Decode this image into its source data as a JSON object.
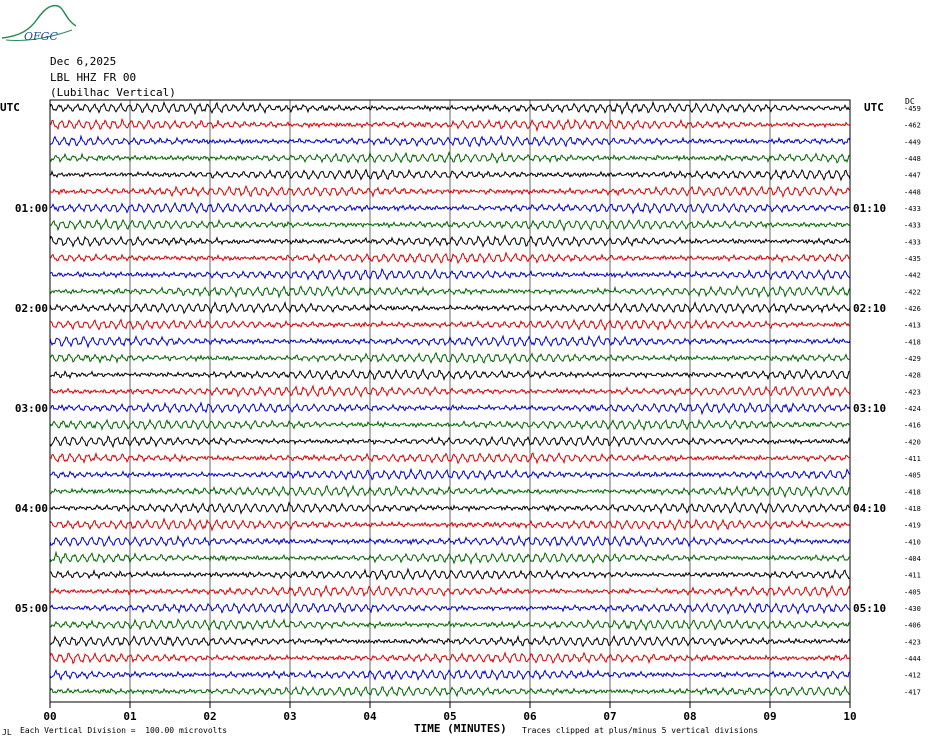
{
  "header": {
    "logo_text": "OFGC",
    "date": "Dec 6,2025",
    "station": "LBL HHZ FR 00",
    "location": "(Lubilhac Vertical)"
  },
  "left_axis_label": "UTC",
  "right_axis_label": "UTC",
  "dc_label": "DC",
  "footer": {
    "left_mark": "JL",
    "scale_note": "Each Vertical Division =  100.00 microvolts",
    "clip_note": "Traces clipped at plus/minus 5 vertical divisions"
  },
  "colors": [
    "#000000",
    "#dd0000",
    "#0000cc",
    "#006600"
  ],
  "chart_data": {
    "type": "line",
    "xlabel": "TIME (MINUTES)",
    "x_ticks": [
      "00",
      "01",
      "02",
      "03",
      "04",
      "05",
      "06",
      "07",
      "08",
      "09",
      "10"
    ],
    "xlim": [
      0,
      10
    ],
    "left_time_labels": [
      {
        "row": 6,
        "label": "01:00"
      },
      {
        "row": 12,
        "label": "02:00"
      },
      {
        "row": 18,
        "label": "03:00"
      },
      {
        "row": 24,
        "label": "04:00"
      },
      {
        "row": 30,
        "label": "05:00"
      }
    ],
    "right_time_labels": [
      {
        "row": 6,
        "label": "01:10"
      },
      {
        "row": 12,
        "label": "02:10"
      },
      {
        "row": 18,
        "label": "03:10"
      },
      {
        "row": 24,
        "label": "04:10"
      },
      {
        "row": 30,
        "label": "05:10"
      }
    ],
    "dc_offsets": [
      -459,
      -462,
      -449,
      -448,
      -447,
      -448,
      -433,
      -433,
      -433,
      -435,
      -442,
      -422,
      -426,
      -413,
      -418,
      -429,
      -428,
      -423,
      -424,
      -416,
      -420,
      -411,
      -405,
      -418,
      -418,
      -419,
      -410,
      -404,
      -411,
      -405,
      -430,
      -406,
      -423,
      -444,
      -412,
      -417
    ]
  }
}
